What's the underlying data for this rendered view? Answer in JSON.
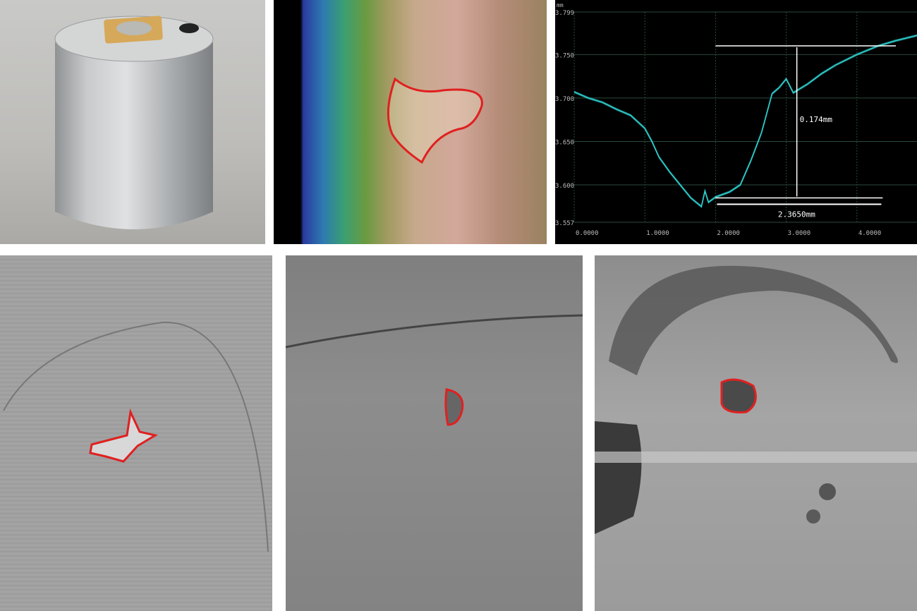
{
  "panels": {
    "battery_photo": "battery-cell",
    "color_scan": "defect-color-map",
    "profile": "depth-profile",
    "microscope_1": "defect-gray-1",
    "microscope_2": "defect-gray-2",
    "microscope_3": "defect-gray-3"
  },
  "colors": {
    "outline": "#e02020",
    "trace": "#2fd0d0",
    "chart_bg": "#000000"
  },
  "chart_data": {
    "type": "line",
    "ylabel": "mm",
    "yticks": [
      "3.799",
      "3.750",
      "3.700",
      "3.650",
      "3.600",
      "3.557"
    ],
    "ytick_values": [
      3.799,
      3.75,
      3.7,
      3.65,
      3.6,
      3.557
    ],
    "xticks": [
      "0.0000",
      "1.0000",
      "2.0000",
      "3.0000",
      "4.0000"
    ],
    "xtick_values": [
      0,
      1,
      2,
      3,
      4
    ],
    "xlim": [
      0,
      4.85
    ],
    "ylim": [
      3.557,
      3.799
    ],
    "grid": true,
    "x": [
      0,
      0.2,
      0.4,
      0.6,
      0.8,
      1.0,
      1.1,
      1.2,
      1.35,
      1.5,
      1.65,
      1.8,
      1.85,
      1.9,
      2.0,
      2.2,
      2.35,
      2.5,
      2.65,
      2.8,
      2.9,
      3.0,
      3.1,
      3.3,
      3.5,
      3.7,
      4.0,
      4.3,
      4.55,
      4.85
    ],
    "values": [
      3.707,
      3.7,
      3.695,
      3.687,
      3.68,
      3.665,
      3.65,
      3.632,
      3.615,
      3.6,
      3.585,
      3.575,
      3.593,
      3.58,
      3.586,
      3.592,
      3.6,
      3.628,
      3.66,
      3.705,
      3.712,
      3.722,
      3.706,
      3.716,
      3.728,
      3.738,
      3.75,
      3.76,
      3.766,
      3.772
    ],
    "annotations": {
      "height_label": "0.174mm",
      "width_label": "2.3650mm",
      "top_level": 3.76,
      "bottom_level": 3.585,
      "x_start": 2.0,
      "x_end": 4.365
    }
  }
}
